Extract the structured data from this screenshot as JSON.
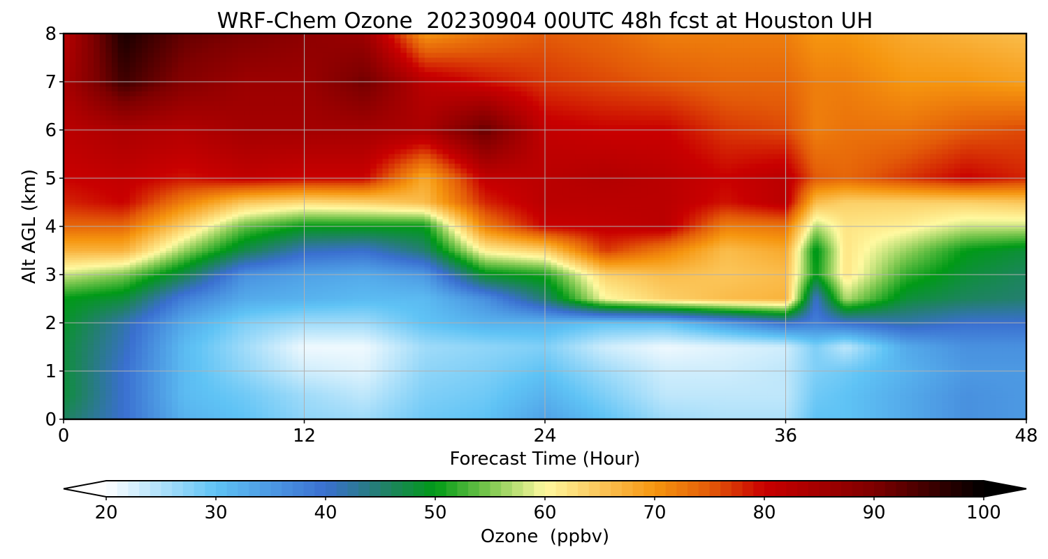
{
  "chart_data": {
    "type": "heatmap",
    "title": "WRF-Chem Ozone  20230904 00UTC 48h fcst at Houston UH",
    "xlabel": "Forecast Time (Hour)",
    "ylabel": "Alt AGL (km)",
    "xlim": [
      0,
      48
    ],
    "ylim": [
      0,
      8
    ],
    "xticks": [
      0,
      12,
      24,
      36,
      48
    ],
    "yticks": [
      0,
      1,
      2,
      3,
      4,
      5,
      6,
      7,
      8
    ],
    "grid": true,
    "colorbar": {
      "label": "Ozone  (ppbv)",
      "range": [
        20,
        100
      ],
      "ticks": [
        20,
        30,
        40,
        50,
        60,
        70,
        80,
        90,
        100
      ],
      "extend": "both",
      "colormap_stops": [
        {
          "value": 20,
          "color": "#ffffff"
        },
        {
          "value": 30,
          "color": "#5fc3f5"
        },
        {
          "value": 40,
          "color": "#3a6fd0"
        },
        {
          "value": 45,
          "color": "#237f6f"
        },
        {
          "value": 50,
          "color": "#009a16"
        },
        {
          "value": 55,
          "color": "#7ec850"
        },
        {
          "value": 60,
          "color": "#fff9a0"
        },
        {
          "value": 65,
          "color": "#fbc65a"
        },
        {
          "value": 70,
          "color": "#f6960f"
        },
        {
          "value": 75,
          "color": "#e35b08"
        },
        {
          "value": 80,
          "color": "#c90000"
        },
        {
          "value": 90,
          "color": "#7e0000"
        },
        {
          "value": 100,
          "color": "#000000"
        }
      ]
    },
    "x_hours": [
      0,
      3,
      6,
      9,
      12,
      15,
      18,
      21,
      24,
      27,
      30,
      33,
      36,
      37.5,
      39,
      42,
      45,
      48
    ],
    "y_km": [
      0,
      0.5,
      1,
      1.5,
      2,
      2.5,
      3,
      3.5,
      4,
      4.5,
      5,
      6,
      7,
      8
    ],
    "ozone_ppbv": [
      [
        46,
        40,
        32,
        30,
        27,
        26,
        29,
        30,
        34,
        30,
        26,
        25,
        25,
        30,
        30,
        33,
        36,
        35
      ],
      [
        48,
        40,
        31,
        29,
        26,
        24,
        28,
        29,
        32,
        28,
        24,
        24,
        24,
        29,
        30,
        33,
        36,
        35
      ],
      [
        48,
        40,
        31,
        27,
        23,
        22,
        27,
        28,
        30,
        26,
        23,
        23,
        24,
        28,
        29,
        32,
        35,
        35
      ],
      [
        48,
        41,
        31,
        26,
        21,
        21,
        26,
        27,
        28,
        23,
        21,
        22,
        23,
        28,
        24,
        33,
        36,
        36
      ],
      [
        49,
        42,
        33,
        28,
        26,
        26,
        30,
        32,
        32,
        30,
        30,
        35,
        40,
        38,
        40,
        42,
        40,
        40
      ],
      [
        50,
        48,
        38,
        33,
        32,
        31,
        31,
        36,
        45,
        60,
        64,
        66,
        67,
        40,
        57,
        48,
        46,
        45
      ],
      [
        58,
        55,
        47,
        36,
        34,
        33,
        35,
        49,
        51,
        64,
        66,
        65,
        66,
        50,
        62,
        52,
        48,
        46
      ],
      [
        67,
        67,
        56,
        47,
        41,
        40,
        45,
        61,
        64,
        77,
        72,
        66,
        68,
        49,
        62,
        56,
        50,
        48
      ],
      [
        74,
        74,
        64,
        54,
        50,
        50,
        50,
        72,
        80,
        81,
        82,
        72,
        73,
        57,
        62,
        61,
        58,
        58
      ],
      [
        78,
        80,
        72,
        65,
        63,
        64,
        66,
        78,
        82,
        82,
        82,
        79,
        82,
        66,
        64,
        64,
        64,
        65
      ],
      [
        80,
        81,
        79,
        81,
        80,
        80,
        68,
        81,
        82,
        83,
        82,
        80,
        82,
        75,
        74,
        77,
        80,
        78
      ],
      [
        82,
        84,
        83,
        85,
        85,
        85,
        84,
        92,
        81,
        80,
        80,
        77,
        76,
        72,
        73,
        73,
        75,
        76
      ],
      [
        84,
        95,
        89,
        86,
        86,
        91,
        82,
        79,
        77,
        76,
        75,
        74,
        74,
        72,
        72,
        70,
        70,
        69
      ],
      [
        82,
        98,
        92,
        90,
        88,
        86,
        70,
        73,
        75,
        74,
        72,
        72,
        72,
        70,
        70,
        68,
        67,
        66
      ]
    ]
  }
}
